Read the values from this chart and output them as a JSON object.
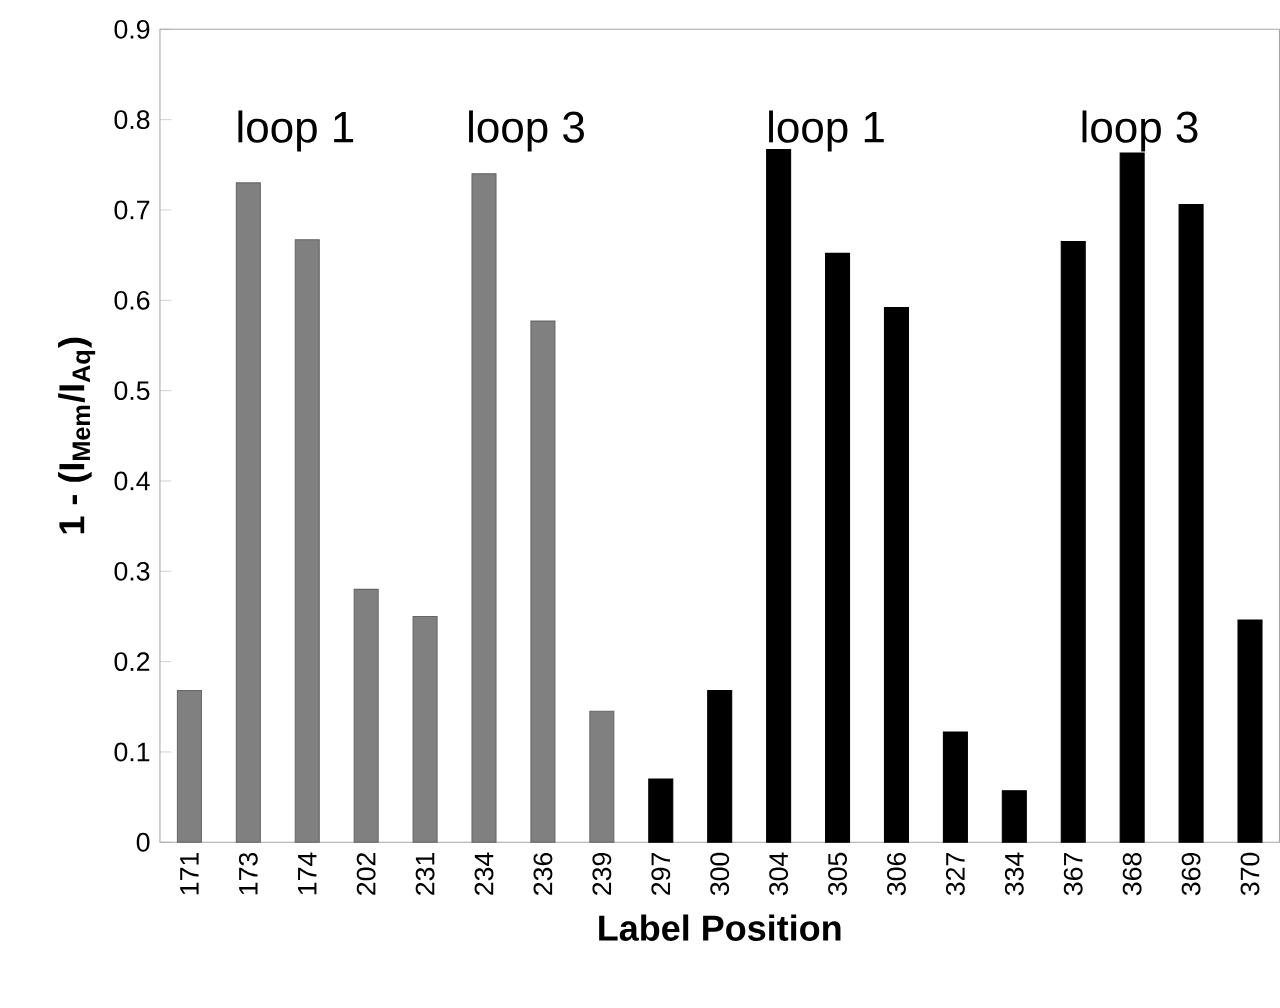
{
  "chart_data": {
    "type": "bar",
    "xlabel": "Label Position",
    "ylabel": "**1 - (I$_{Mem}$/I$_{Aq}$)**",
    "categories": [
      "171",
      "173",
      "174",
      "202",
      "231",
      "234",
      "236",
      "239",
      "297",
      "300",
      "304",
      "305",
      "306",
      "327",
      "334",
      "367",
      "368",
      "369",
      "370"
    ],
    "values": [
      0.168,
      0.73,
      0.667,
      0.28,
      0.25,
      0.74,
      0.577,
      0.145,
      0.07,
      0.168,
      0.767,
      0.652,
      0.592,
      0.122,
      0.057,
      0.665,
      0.763,
      0.706,
      0.246
    ],
    "colors": [
      "#808080",
      "#808080",
      "#808080",
      "#808080",
      "#808080",
      "#808080",
      "#808080",
      "#808080",
      "#000000",
      "#000000",
      "#000000",
      "#000000",
      "#000000",
      "#000000",
      "#000000",
      "#000000",
      "#000000",
      "#000000",
      "#000000"
    ],
    "ylim": [
      0,
      0.9
    ],
    "yticks": [
      0,
      0.1,
      0.2,
      0.3,
      0.4,
      0.5,
      0.6,
      0.7,
      0.8,
      0.9
    ],
    "grid": false,
    "annotations": [
      "loop 1",
      "loop 3",
      "loop 1",
      "loop 3"
    ]
  }
}
